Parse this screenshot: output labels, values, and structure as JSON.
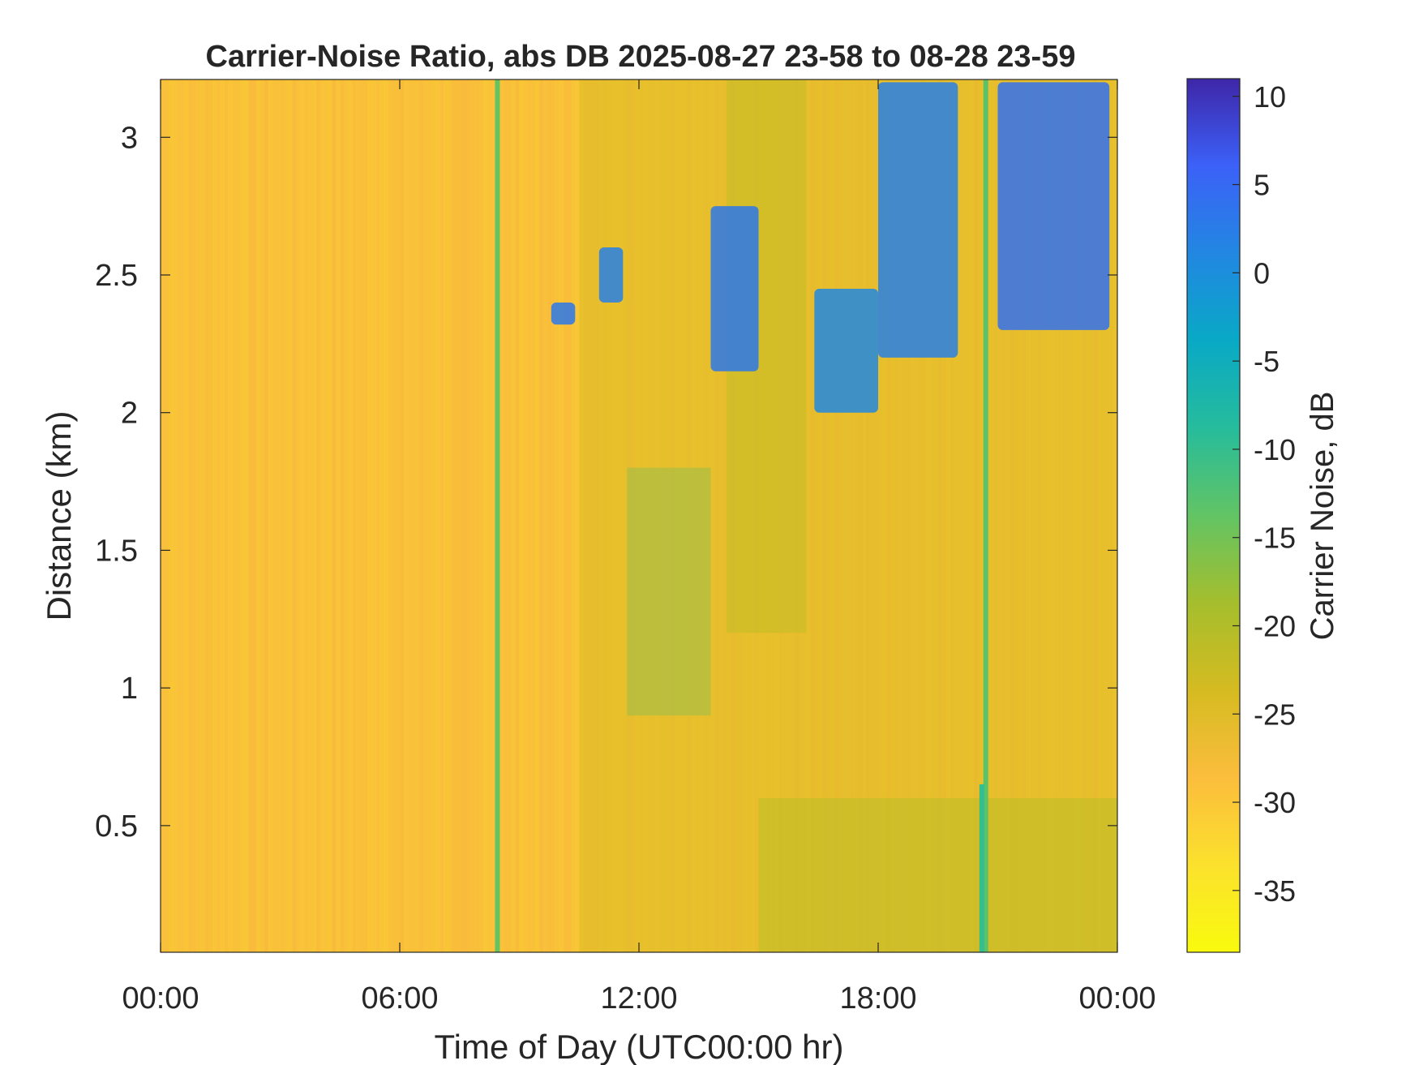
{
  "chart_data": {
    "type": "heatmap",
    "title": "Carrier-Noise Ratio, abs DB 2025-08-27 23-58 to 08-28 23-59",
    "xlabel": "Time of Day (UTC00:00 hr)",
    "ylabel": "Distance (km)",
    "colorbar_label": "Carrier Noise, dB",
    "colormap": "parula",
    "x_ticks": [
      "00:00",
      "06:00",
      "12:00",
      "18:00",
      "00:00"
    ],
    "x_tick_hours": [
      0,
      6,
      12,
      18,
      24
    ],
    "xlim_hours": [
      0,
      24
    ],
    "y_ticks": [
      "0.5",
      "1",
      "1.5",
      "2",
      "2.5",
      "3"
    ],
    "y_tick_values": [
      0.5,
      1,
      1.5,
      2,
      2.5,
      3
    ],
    "ylim_km": [
      0.04,
      3.21
    ],
    "colorbar_ticks": [
      "10",
      "5",
      "0",
      "-5",
      "-10",
      "-15",
      "-20",
      "-25",
      "-30",
      "-35"
    ],
    "colorbar_tick_values": [
      10,
      5,
      0,
      -5,
      -10,
      -15,
      -20,
      -25,
      -30,
      -35
    ],
    "clim_db": [
      -38.5,
      11
    ],
    "background_db": -30,
    "features": [
      {
        "kind": "streak",
        "hour": 8.45,
        "km_range": [
          0.04,
          3.21
        ],
        "db": -14
      },
      {
        "kind": "streak",
        "hour": 20.7,
        "km_range": [
          0.04,
          3.21
        ],
        "db": -13
      },
      {
        "kind": "streak",
        "hour": 20.6,
        "km_range": [
          0.04,
          0.65
        ],
        "db": -10
      },
      {
        "kind": "region",
        "hour_range": [
          11.7,
          13.8
        ],
        "km_range": [
          0.9,
          1.8
        ],
        "db": -12
      },
      {
        "kind": "region",
        "hour_range": [
          14.2,
          16.2
        ],
        "km_range": [
          1.2,
          3.21
        ],
        "db": -19
      },
      {
        "kind": "region",
        "hour_range": [
          10.5,
          24
        ],
        "km_range": [
          0.04,
          3.21
        ],
        "db": -24
      },
      {
        "kind": "region",
        "hour_range": [
          15,
          24
        ],
        "km_range": [
          0.04,
          0.6
        ],
        "db": -21
      },
      {
        "kind": "blob",
        "hour_range": [
          9.8,
          10.4
        ],
        "km_range": [
          2.32,
          2.4
        ],
        "db": 3
      },
      {
        "kind": "blob",
        "hour_range": [
          11.0,
          11.6
        ],
        "km_range": [
          2.4,
          2.6
        ],
        "db": 2
      },
      {
        "kind": "blob",
        "hour_range": [
          13.8,
          15.0
        ],
        "km_range": [
          2.15,
          2.75
        ],
        "db": 3
      },
      {
        "kind": "blob",
        "hour_range": [
          16.4,
          18.0
        ],
        "km_range": [
          2.0,
          2.45
        ],
        "db": 1
      },
      {
        "kind": "blob",
        "hour_range": [
          18.0,
          20.0
        ],
        "km_range": [
          2.2,
          3.2
        ],
        "db": 2
      },
      {
        "kind": "blob",
        "hour_range": [
          21.0,
          23.8
        ],
        "km_range": [
          2.3,
          3.2
        ],
        "db": 4
      }
    ]
  }
}
